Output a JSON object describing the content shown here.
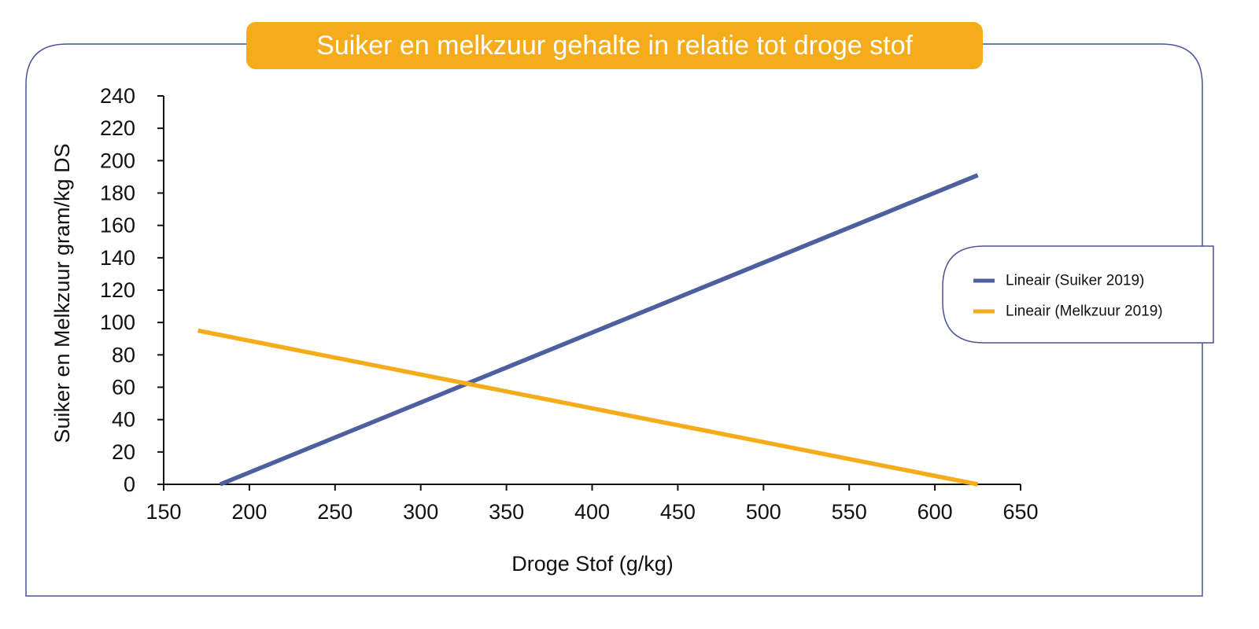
{
  "colors": {
    "frame": "#4a5493",
    "title_bg": "#f5ac1a",
    "title_text": "#ffffff",
    "axis": "#111111",
    "suiker": "#4e5fa0",
    "melkzuur": "#f5ac1a"
  },
  "chart_data": {
    "type": "line",
    "title": "Suiker en melkzuur gehalte in relatie tot droge stof",
    "xlabel": "Droge Stof (g/kg)",
    "ylabel": "Suiker en Melkzuur gram/kg DS",
    "xlim": [
      150,
      650
    ],
    "ylim": [
      0,
      240
    ],
    "x_ticks": [
      150,
      200,
      250,
      300,
      350,
      400,
      450,
      500,
      550,
      600,
      650
    ],
    "y_ticks": [
      0,
      20,
      40,
      60,
      80,
      100,
      120,
      140,
      160,
      180,
      200,
      220,
      240
    ],
    "grid": false,
    "legend_position": "right",
    "series": [
      {
        "name": "Lineair (Suiker 2019)",
        "color": "#4e5fa0",
        "x": [
          183,
          625
        ],
        "y": [
          0,
          191
        ]
      },
      {
        "name": "Lineair (Melkzuur 2019)",
        "color": "#f5ac1a",
        "x": [
          170,
          625
        ],
        "y": [
          95,
          0
        ]
      }
    ]
  }
}
